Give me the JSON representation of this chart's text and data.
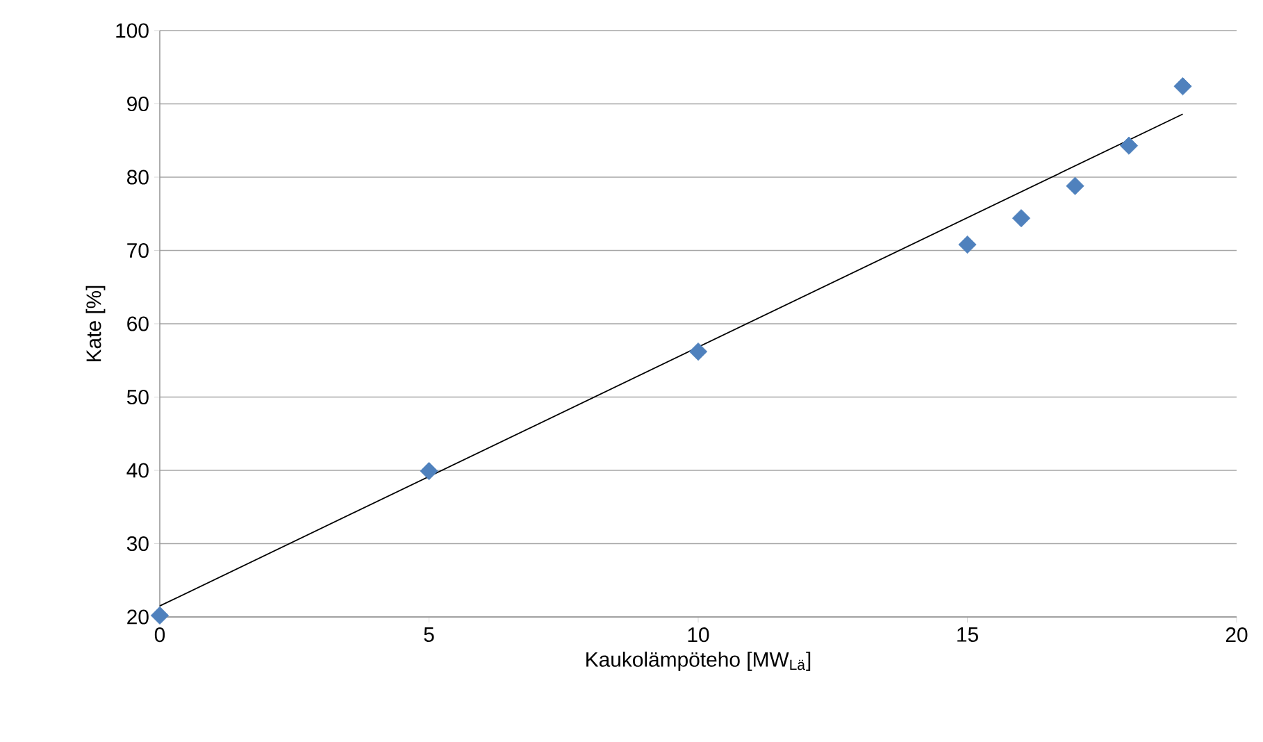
{
  "chart_data": {
    "type": "scatter",
    "xlabel": "Kaukolämpöteho [MW$_{Lä}$]",
    "ylabel": "Kate [%]",
    "xlim": [
      0,
      20
    ],
    "ylim": [
      20,
      100
    ],
    "xticks": [
      0,
      5,
      10,
      15,
      20
    ],
    "yticks": [
      20,
      30,
      40,
      50,
      60,
      70,
      80,
      90,
      100
    ],
    "grid": "y",
    "series": [
      {
        "color": "#4f81bd",
        "marker": "diamond",
        "x": [
          0,
          5,
          10,
          15,
          16,
          17,
          18,
          19
        ],
        "values": [
          20.2,
          39.9,
          56.2,
          70.8,
          74.4,
          78.8,
          84.3,
          92.4
        ]
      },
      {
        "type": "line",
        "color": "#000000",
        "line_style": "solid",
        "x": [
          0,
          19
        ],
        "values": [
          21.5,
          88.6
        ]
      }
    ]
  }
}
